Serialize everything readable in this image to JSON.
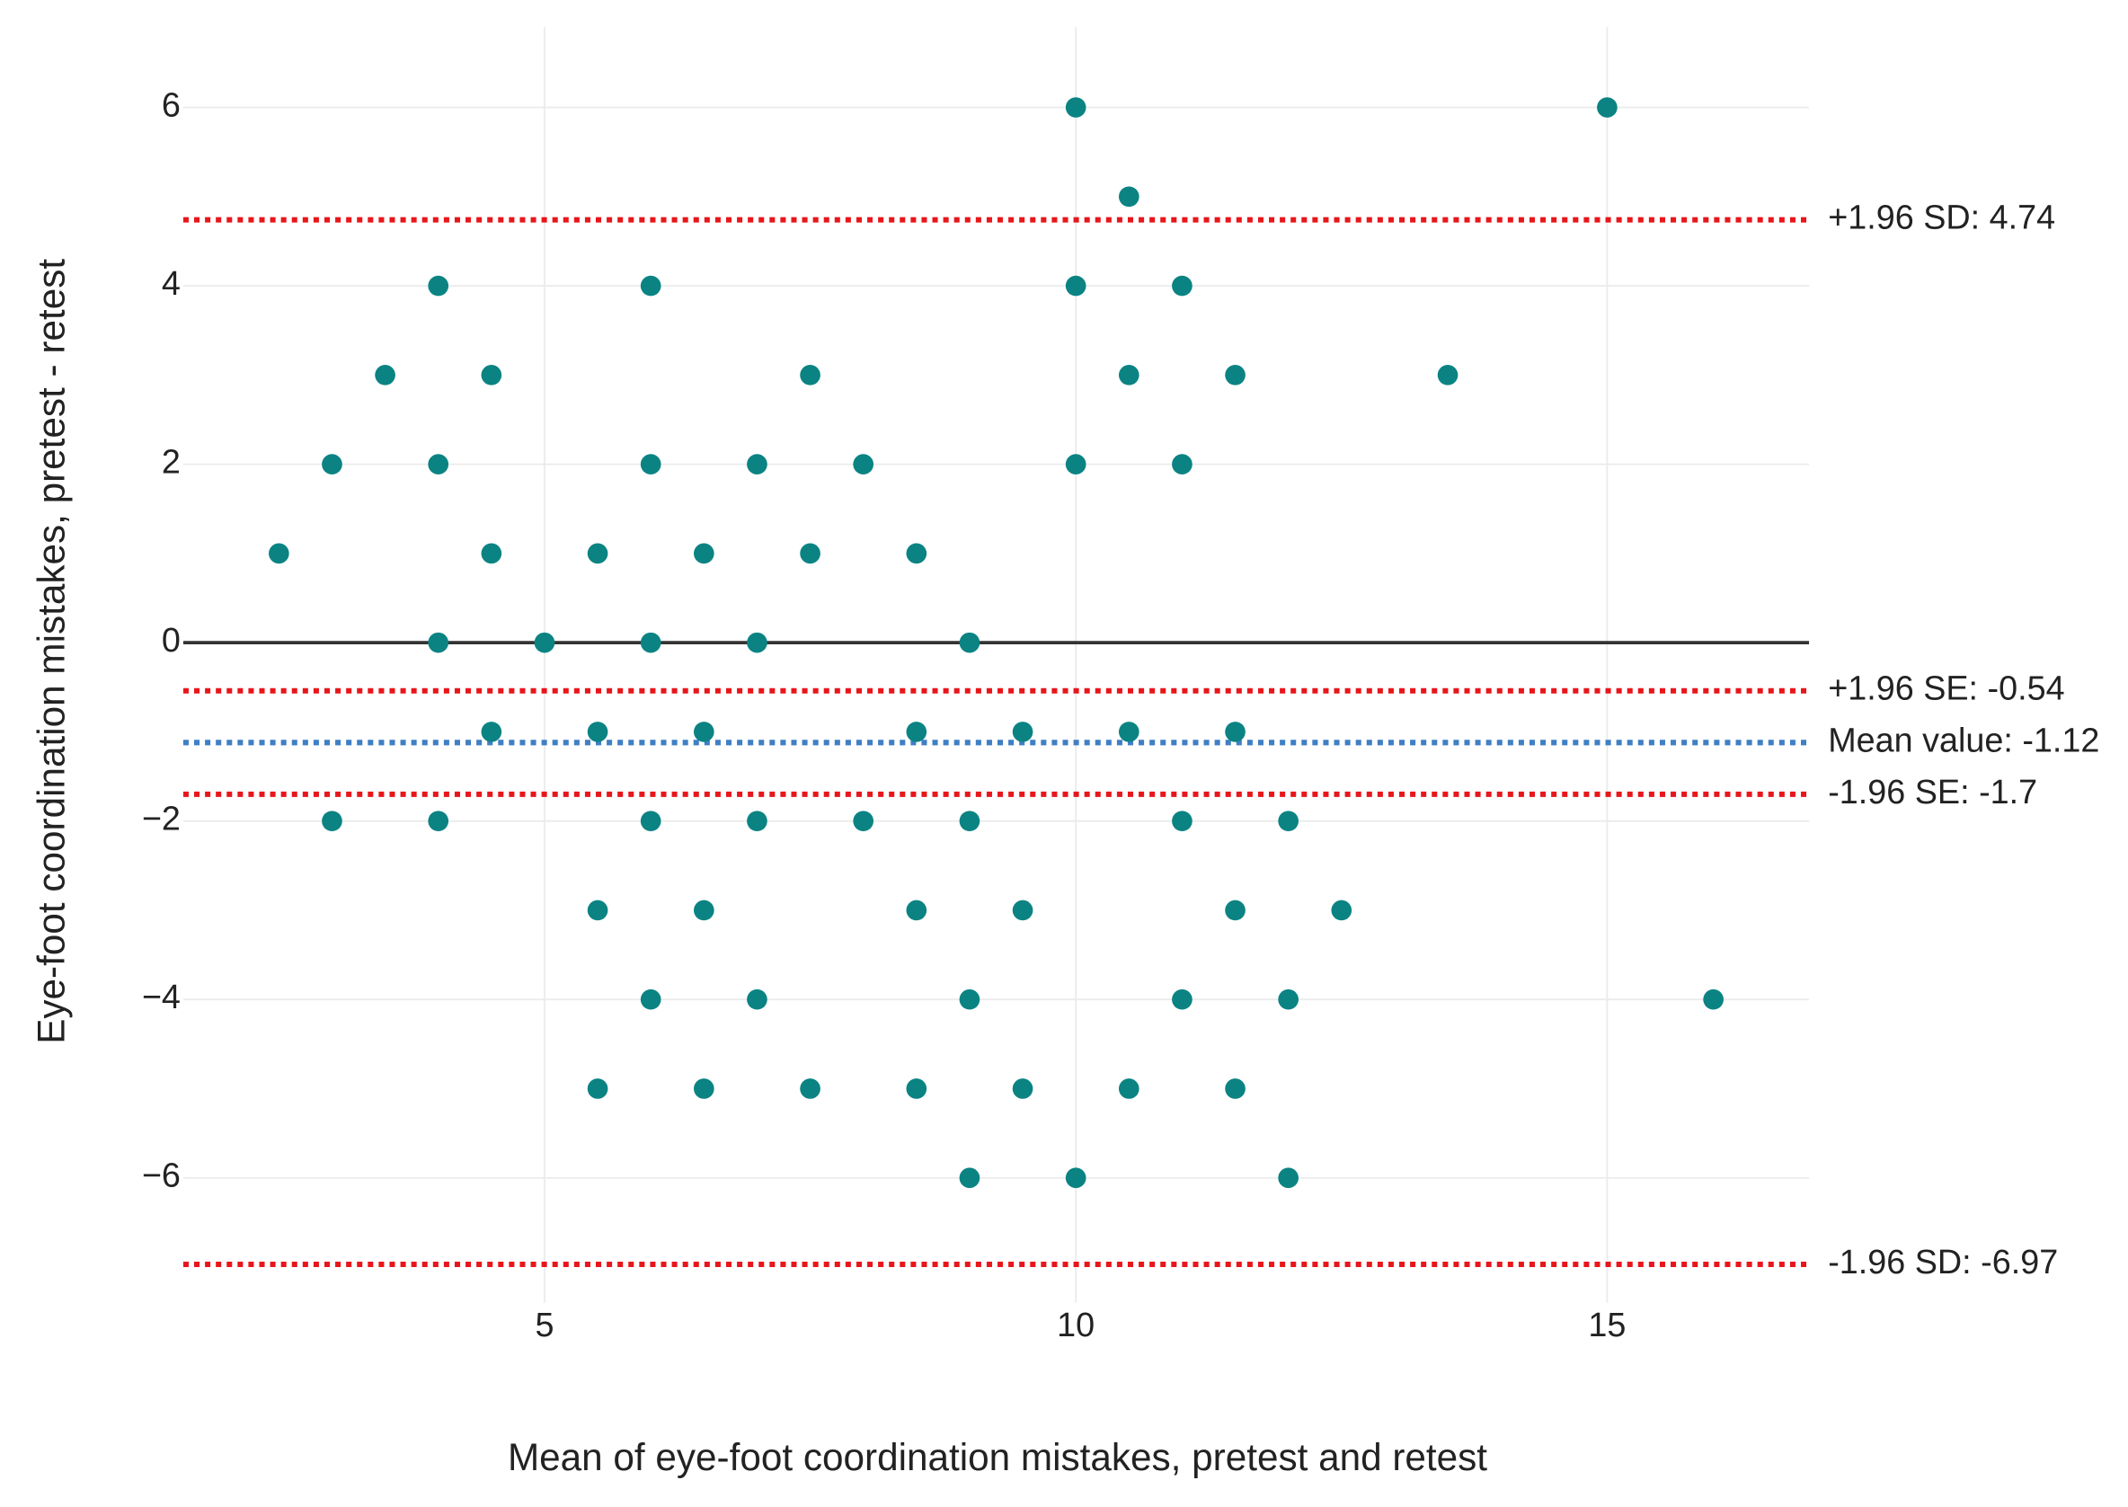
{
  "chart_data": {
    "type": "scatter",
    "x_label": "Mean of eye-foot coordination mistakes, pretest and retest",
    "y_label": "Eye-foot coordination mistakes, pretest - retest",
    "series": [
      {
        "color": "#0b8383",
        "x": [
          10,
          15,
          10.5,
          4,
          6,
          10,
          11,
          3.5,
          4.5,
          7.5,
          10.5,
          11.5,
          13.5,
          3,
          4,
          6,
          7,
          8,
          10,
          11,
          2.5,
          4.5,
          5.5,
          6.5,
          7.5,
          8.5,
          4,
          5,
          6,
          7,
          9,
          4.5,
          5.5,
          6.5,
          8.5,
          9.5,
          10.5,
          11.5,
          3,
          4,
          6,
          7,
          8,
          9,
          11,
          12,
          5.5,
          6.5,
          8.5,
          9.5,
          11.5,
          12.5,
          6,
          7,
          9,
          11,
          12,
          16,
          5.5,
          6.5,
          7.5,
          8.5,
          9.5,
          10.5,
          11.5,
          9,
          10,
          12
        ],
        "y": [
          6,
          6,
          5,
          4,
          4,
          4,
          4,
          3,
          3,
          3,
          3,
          3,
          3,
          2,
          2,
          2,
          2,
          2,
          2,
          2,
          1,
          1,
          1,
          1,
          1,
          1,
          0,
          0,
          0,
          0,
          0,
          -1,
          -1,
          -1,
          -1,
          -1,
          -1,
          -1,
          -2,
          -2,
          -2,
          -2,
          -2,
          -2,
          -2,
          -2,
          -3,
          -3,
          -3,
          -3,
          -3,
          -3,
          -4,
          -4,
          -4,
          -4,
          -4,
          -4,
          -5,
          -5,
          -5,
          -5,
          -5,
          -5,
          -5,
          -6,
          -6,
          -6
        ]
      }
    ],
    "reference_lines": [
      {
        "value": 0,
        "color": "#333333",
        "style": "solid"
      },
      {
        "value": 4.74,
        "label": "+1.96 SD: 4.74",
        "color": "#e8161b",
        "style": "dotted"
      },
      {
        "value": -0.54,
        "label": "+1.96 SE: -0.54",
        "color": "#e8161b",
        "style": "dotted"
      },
      {
        "value": -1.12,
        "label": "Mean value: -1.12",
        "color": "#3f7fc4",
        "style": "dotted"
      },
      {
        "value": -1.7,
        "label": "-1.96 SE: -1.7",
        "color": "#e8161b",
        "style": "dotted"
      },
      {
        "value": -6.97,
        "label": "-1.96 SD: -6.97",
        "color": "#e8161b",
        "style": "dotted"
      }
    ],
    "xlim": [
      1.6,
      16.9
    ],
    "ylim": [
      -7.4,
      6.9
    ],
    "xticks": [
      5,
      10,
      15
    ],
    "yticks": [
      {
        "value": -6,
        "label": "−6"
      },
      {
        "value": -4,
        "label": "−4"
      },
      {
        "value": -2,
        "label": "−2"
      },
      0,
      2,
      4,
      6
    ],
    "grid": true
  }
}
